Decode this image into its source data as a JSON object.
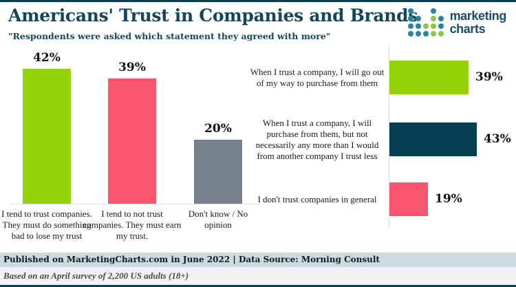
{
  "header": {
    "title": "Americans' Trust in Companies and Brands",
    "subtitle": "\"Respondents were asked which statement they agreed with more\"",
    "logo_line1": "marketing",
    "logo_line2": "charts"
  },
  "colors": {
    "title_teal": "#15455a",
    "border_teal": "#0c3b4d",
    "bar_green": "#93d307",
    "bar_pink": "#f8566f",
    "bar_gray": "#76838f",
    "bar_dark_teal": "#053e50",
    "footer_band_bg": "#ccdae2",
    "footer_note_bg": "#f2f2f2",
    "logo_teal": "#2187a0",
    "logo_green": "#8dc63f"
  },
  "chart_data": [
    {
      "type": "bar",
      "orientation": "vertical",
      "unit": "percent",
      "categories": [
        "I tend to trust companies. They must do something bad to lose my trust",
        "I tend to not trust companies. They must earn my trust.",
        "Don't know / No opinion"
      ],
      "values": [
        42,
        39,
        20
      ],
      "value_labels": [
        "42%",
        "39%",
        "20%"
      ],
      "bar_colors": [
        "#93d307",
        "#f8566f",
        "#76838f"
      ],
      "ylim": [
        0,
        45
      ],
      "grid": false,
      "legend": false
    },
    {
      "type": "bar",
      "orientation": "horizontal",
      "unit": "percent",
      "categories": [
        "When I trust a company, I will go out of my way to purchase from them",
        "When I trust a company, I will purchase from them, but not necessarily any more than I would from another company I trust less",
        "I don't trust companies in general"
      ],
      "values": [
        39,
        43,
        19
      ],
      "value_labels": [
        "39%",
        "43%",
        "19%"
      ],
      "bar_colors": [
        "#93d307",
        "#053e50",
        "#f8566f"
      ],
      "xlim": [
        0,
        45
      ],
      "grid": false,
      "legend": false
    }
  ],
  "footer": {
    "published": "Published on MarketingCharts.com in June 2022 | Data Source: Morning Consult",
    "note": "Based on an April survey of 2,200 US adults (18+)"
  }
}
